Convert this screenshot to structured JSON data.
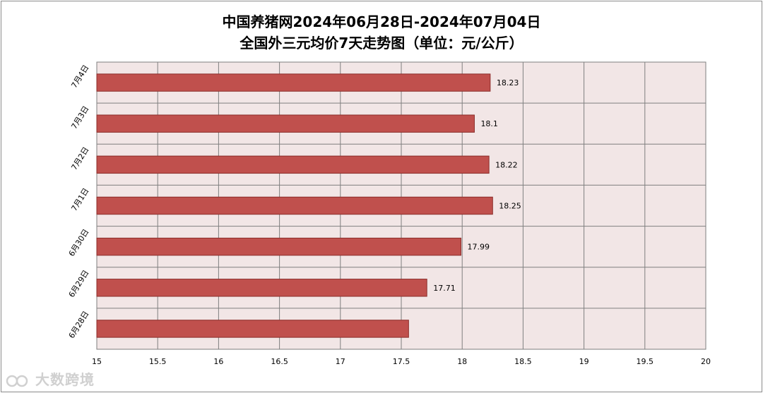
{
  "chart_data": {
    "type": "bar",
    "orientation": "horizontal",
    "title": "中国养猪网2024年06月28日-2024年07月04日",
    "subtitle": "全国外三元均价7天走势图（单位：元/公斤）",
    "categories": [
      "7月4日",
      "7月3日",
      "7月2日",
      "7月1日",
      "6月30日",
      "6月29日",
      "6月28日"
    ],
    "values": [
      18.23,
      18.1,
      18.22,
      18.25,
      17.99,
      17.71,
      17.56
    ],
    "data_labels": [
      "18.23",
      "18.1",
      "18.22",
      "18.25",
      "17.99",
      "17.71",
      ""
    ],
    "xlim": [
      15,
      20
    ],
    "xticks": [
      "15",
      "15.5",
      "16",
      "16.5",
      "17",
      "17.5",
      "18",
      "18.5",
      "19",
      "19.5",
      "20"
    ],
    "grid": true,
    "legend": "none",
    "colors": {
      "bar": "#c0504d",
      "bar_edge": "#8b2d2a",
      "plot_bg": "#f2e6e6",
      "grid": "#7f7f7f"
    }
  },
  "watermark": {
    "text": "大数跨境"
  }
}
